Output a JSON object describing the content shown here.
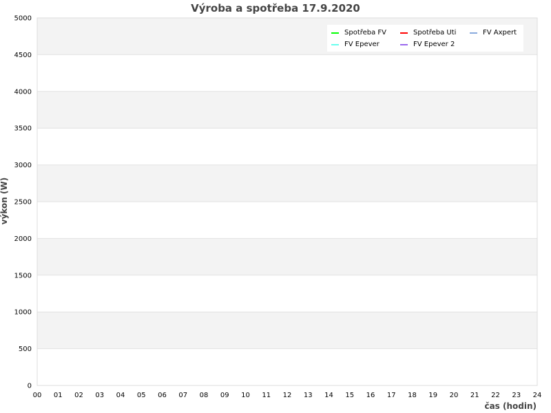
{
  "chart_data": {
    "type": "line",
    "title": "Výroba a spotřeba 17.9.2020",
    "xlabel": "čas (hodin)",
    "ylabel": "výkon (W)",
    "xlim": [
      0,
      24
    ],
    "ylim": [
      0,
      5000
    ],
    "x_ticks": [
      "00",
      "01",
      "02",
      "03",
      "04",
      "05",
      "06",
      "07",
      "08",
      "09",
      "10",
      "11",
      "12",
      "13",
      "14",
      "15",
      "16",
      "17",
      "18",
      "19",
      "20",
      "21",
      "22",
      "23",
      "24"
    ],
    "y_ticks": [
      0,
      500,
      1000,
      1500,
      2000,
      2500,
      3000,
      3500,
      4000,
      4500,
      5000
    ],
    "grid": true,
    "legend_placement": "top-right",
    "series": [
      {
        "name": "Spotřeba FV",
        "color": "#00ff00",
        "values": []
      },
      {
        "name": "Spotřeba Uti",
        "color": "#ff0000",
        "values": []
      },
      {
        "name": "FV Axpert",
        "color": "#88aadd",
        "values": []
      },
      {
        "name": "FV Epever",
        "color": "#66ffee",
        "values": []
      },
      {
        "name": "FV Epever 2",
        "color": "#9966ee",
        "values": []
      }
    ]
  }
}
